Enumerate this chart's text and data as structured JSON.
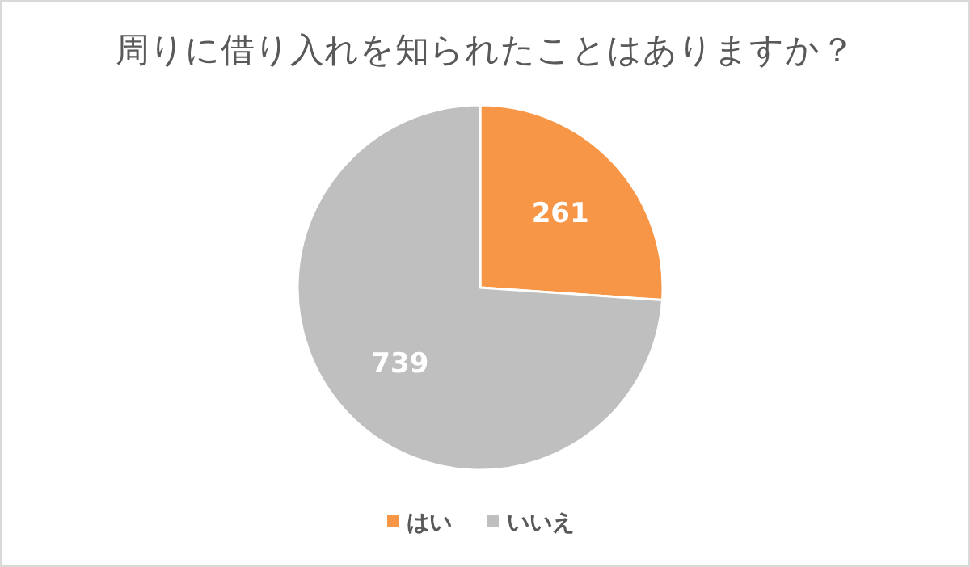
{
  "chart_data": {
    "type": "pie",
    "title": "周りに借り入れを知られたことはありますか？",
    "categories": [
      "はい",
      "いいえ"
    ],
    "values": [
      261,
      739
    ],
    "colors": [
      "#f79646",
      "#bfbfbf"
    ],
    "data_labels": true,
    "legend": "bottom"
  }
}
